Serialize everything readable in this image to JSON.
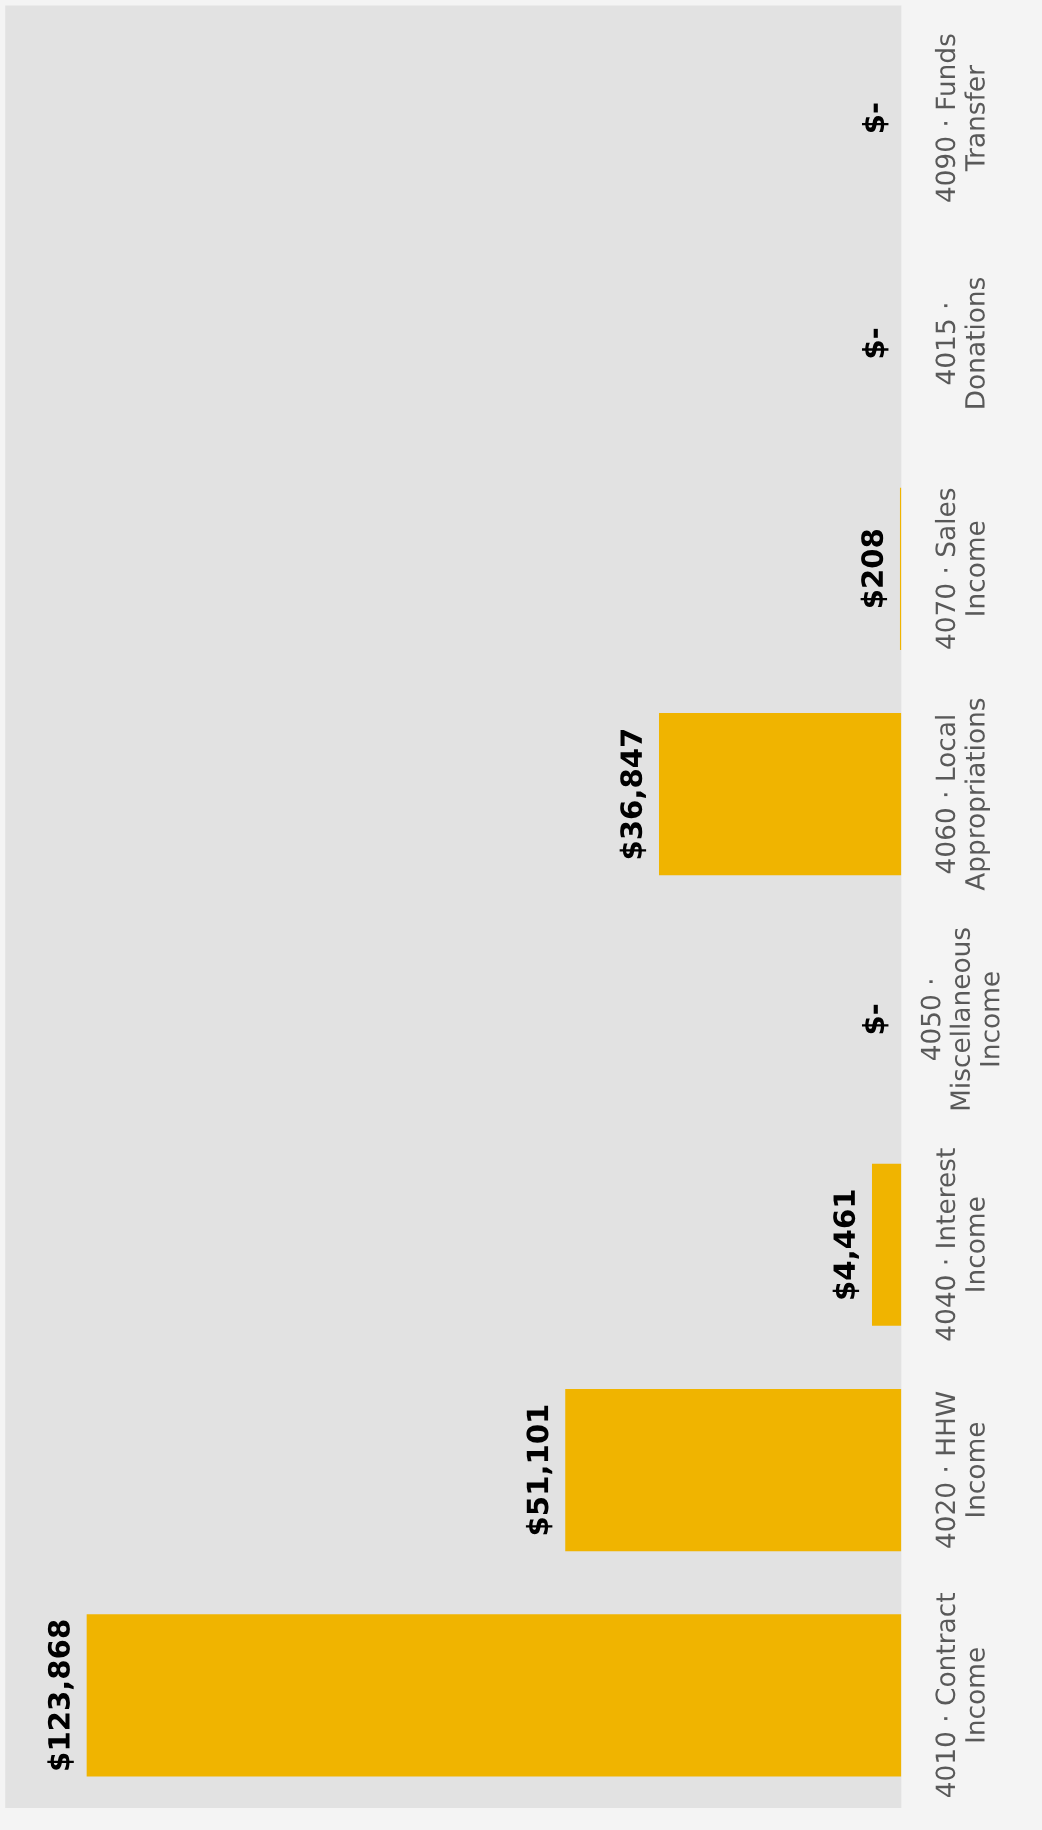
{
  "chart_data": {
    "type": "bar",
    "orientation": "horizontal",
    "categories": [
      "4090 · Funds\nTransfer",
      "4015 ·\nDonations",
      "4070 · Sales\nIncome",
      "4060 · Local\nAppropriations",
      "4050 ·\nMiscellaneous\nIncome",
      "4040 · Interest\nIncome",
      "4020 · HHW\nIncome",
      "4010 · Contract\nIncome"
    ],
    "values": [
      0,
      0,
      208,
      36847,
      0,
      4461,
      51101,
      123868
    ],
    "value_labels": [
      "$-",
      "$-",
      "$208",
      "$36,847",
      "$-",
      "$4,461",
      "$51,101",
      "$123,868"
    ],
    "color": "#f0b400",
    "tick_labels": "y"
  }
}
